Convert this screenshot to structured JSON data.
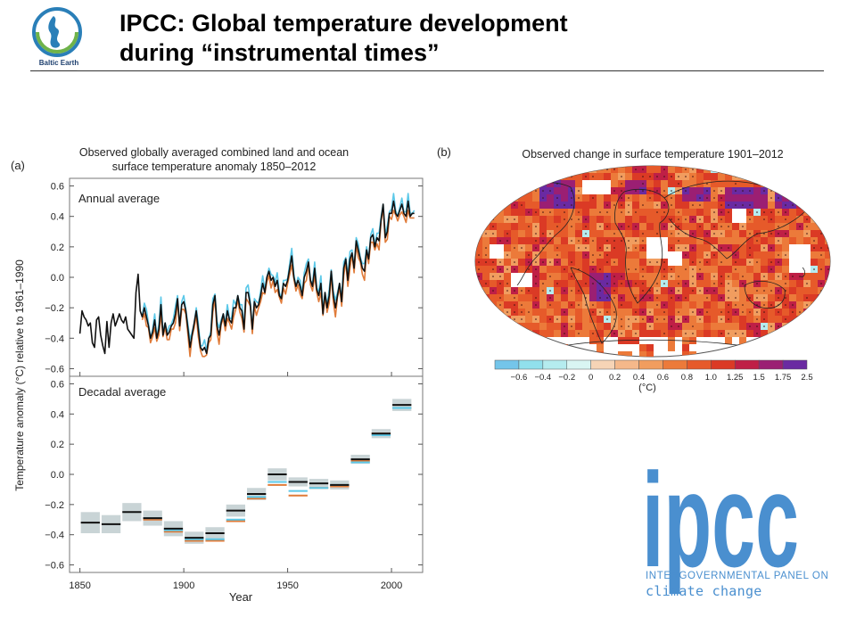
{
  "slide": {
    "title_line1": "IPCC: Global temperature development",
    "title_line2": "during “instrumental times”",
    "logo_label": "Baltic Earth"
  },
  "ipcc": {
    "wordmark": "ipcc",
    "line1": "INTERGOVERNMENTAL PANEL ON",
    "line2": "climate change"
  },
  "chart_data": [
    {
      "type": "line",
      "panel": "(a)",
      "title": "Observed globally averaged combined land and ocean",
      "subtitle": "surface temperature anomaly 1850–2012",
      "subpanel_label": "Annual average",
      "xlabel": "Year",
      "ylabel": "Temperature anomaly (°C) relative to 1961–1990",
      "xlim": [
        1845,
        2015
      ],
      "ylim": [
        -0.65,
        0.65
      ],
      "yticks": [
        "0.6",
        "0.4",
        "0.2",
        "0.0",
        "−0.2",
        "−0.4",
        "−0.6"
      ],
      "ytick_values": [
        0.6,
        0.4,
        0.2,
        0.0,
        -0.2,
        -0.4,
        -0.6
      ],
      "series": [
        {
          "color": "#111111",
          "start": 1850,
          "values": [
            -0.37,
            -0.22,
            -0.26,
            -0.28,
            -0.32,
            -0.3,
            -0.43,
            -0.46,
            -0.28,
            -0.26,
            -0.38,
            -0.45,
            -0.5,
            -0.29,
            -0.46,
            -0.3,
            -0.24,
            -0.32,
            -0.28,
            -0.24,
            -0.28,
            -0.3,
            -0.26,
            -0.34,
            -0.36,
            -0.38,
            -0.4,
            -0.1,
            0.02,
            -0.22,
            -0.26,
            -0.2,
            -0.26,
            -0.32,
            -0.4,
            -0.36,
            -0.28,
            -0.4,
            -0.34,
            -0.18,
            -0.38,
            -0.3,
            -0.38,
            -0.36,
            -0.32,
            -0.3,
            -0.24,
            -0.14,
            -0.32,
            -0.18,
            -0.16,
            -0.22,
            -0.34,
            -0.46,
            -0.38,
            -0.3,
            -0.22,
            -0.34,
            -0.46,
            -0.48,
            -0.46,
            -0.5,
            -0.4,
            -0.38,
            -0.18,
            -0.12,
            -0.32,
            -0.38,
            -0.3,
            -0.24,
            -0.32,
            -0.22,
            -0.28,
            -0.3,
            -0.2,
            -0.2,
            -0.12,
            -0.2,
            -0.22,
            -0.34,
            -0.1,
            -0.1,
            -0.18,
            -0.34,
            -0.16,
            -0.2,
            -0.18,
            -0.12,
            -0.04,
            -0.1,
            0.0,
            0.04,
            -0.02,
            0.0,
            -0.06,
            -0.02,
            -0.12,
            -0.14,
            -0.04,
            -0.06,
            -0.02,
            0.06,
            0.14,
            0.0,
            -0.06,
            -0.02,
            -0.06,
            -0.12,
            0.0,
            0.04,
            0.1,
            -0.02,
            -0.06,
            0.06,
            -0.08,
            -0.12,
            -0.04,
            -0.24,
            -0.1,
            -0.2,
            -0.12,
            0.04,
            -0.12,
            -0.2,
            -0.12,
            -0.04,
            -0.16,
            0.06,
            0.12,
            -0.02,
            0.12,
            0.16,
            0.06,
            0.24,
            0.18,
            0.12,
            0.06,
            0.04,
            0.18,
            0.12,
            0.26,
            0.28,
            0.2,
            0.26,
            0.24,
            0.38,
            0.48,
            0.26,
            0.3,
            0.42,
            0.42,
            0.5,
            0.42,
            0.4,
            0.44,
            0.48,
            0.42,
            0.4,
            0.5,
            0.4,
            0.42,
            0.42
          ]
        },
        {
          "color": "#e07b39",
          "start": 1880,
          "values": []
        },
        {
          "color": "#5bc8e8",
          "start": 1880,
          "values": []
        }
      ]
    },
    {
      "type": "bar",
      "subpanel_label": "Decadal average",
      "xlim": [
        1845,
        2015
      ],
      "ylim": [
        -0.65,
        0.65
      ],
      "xticks": [
        "1850",
        "1900",
        "1950",
        "2000"
      ],
      "xtick_values": [
        1850,
        1900,
        1950,
        2000
      ],
      "yticks": [
        "0.6",
        "0.4",
        "0.2",
        "0.0",
        "−0.2",
        "−0.4",
        "−0.6"
      ],
      "ytick_values": [
        0.6,
        0.4,
        0.2,
        0.0,
        -0.2,
        -0.4,
        -0.6
      ],
      "decades": [
        1850,
        1860,
        1870,
        1880,
        1890,
        1900,
        1910,
        1920,
        1930,
        1940,
        1950,
        1960,
        1970,
        1980,
        1990,
        2000
      ],
      "black": [
        -0.32,
        -0.33,
        -0.25,
        -0.29,
        -0.36,
        -0.42,
        -0.39,
        -0.24,
        -0.13,
        0.0,
        -0.05,
        -0.06,
        -0.07,
        0.1,
        0.27,
        0.46
      ],
      "orange": [
        null,
        null,
        null,
        -0.3,
        -0.38,
        -0.44,
        -0.44,
        -0.31,
        -0.16,
        -0.07,
        -0.14,
        -0.09,
        -0.08,
        0.09,
        0.27,
        0.44
      ],
      "blue": [
        null,
        null,
        null,
        -0.29,
        -0.37,
        -0.43,
        -0.43,
        -0.3,
        -0.15,
        -0.05,
        -0.11,
        -0.09,
        -0.07,
        0.08,
        0.26,
        0.44
      ],
      "uncertainty": [
        0.07,
        0.06,
        0.06,
        0.05,
        0.05,
        0.04,
        0.04,
        0.04,
        0.04,
        0.04,
        0.03,
        0.03,
        0.03,
        0.03,
        0.03,
        0.04
      ]
    },
    {
      "type": "heatmap",
      "panel": "(b)",
      "title": "Observed change in surface temperature 1901–2012",
      "colorbar_unit": "(°C)",
      "colorbar_ticks": [
        "−0.6",
        "−0.4",
        "−0.2",
        "0",
        "0.2",
        "0.4",
        "0.6",
        "0.8",
        "1.0",
        "1.25",
        "1.5",
        "1.75",
        "2.5"
      ],
      "colorbar_colors": [
        "#74c5ea",
        "#91e0ec",
        "#b5ecef",
        "#d9f5f3",
        "#f6d4b6",
        "#f5b88a",
        "#f19d5f",
        "#ec7a3a",
        "#e65a2a",
        "#db3a25",
        "#bf1f46",
        "#9b1f73",
        "#6a2aa2"
      ]
    }
  ]
}
